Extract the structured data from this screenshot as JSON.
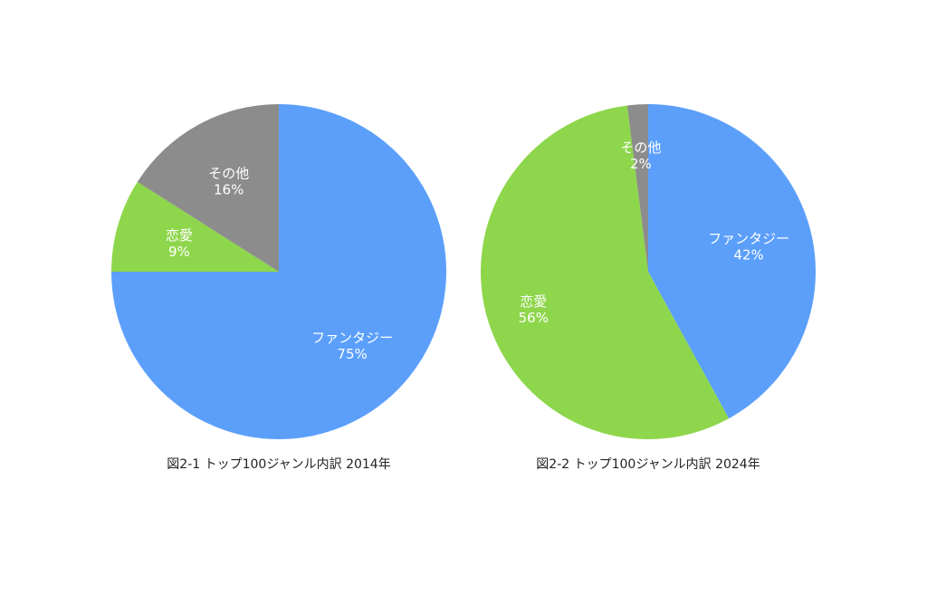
{
  "chart_data": [
    {
      "type": "pie",
      "title": "図2-1 トップ100ジャンル内訳 2014年",
      "start": "12 o'clock",
      "direction": "clockwise",
      "slices": [
        {
          "label": "ファンタジー",
          "value": 75,
          "value_label": "75%",
          "color": "#5B9FFB"
        },
        {
          "label": "恋愛",
          "value": 9,
          "value_label": "9%",
          "color": "#8ED64B"
        },
        {
          "label": "その他",
          "value": 16,
          "value_label": "16%",
          "color": "#8C8C8C"
        }
      ]
    },
    {
      "type": "pie",
      "title": "図2-2 トップ100ジャンル内訳 2024年",
      "start": "12 o'clock",
      "direction": "clockwise",
      "slices": [
        {
          "label": "ファンタジー",
          "value": 42,
          "value_label": "42%",
          "color": "#5B9FFB"
        },
        {
          "label": "恋愛",
          "value": 56,
          "value_label": "56%",
          "color": "#8ED64B"
        },
        {
          "label": "その他",
          "value": 2,
          "value_label": "2%",
          "color": "#8C8C8C"
        }
      ]
    }
  ]
}
